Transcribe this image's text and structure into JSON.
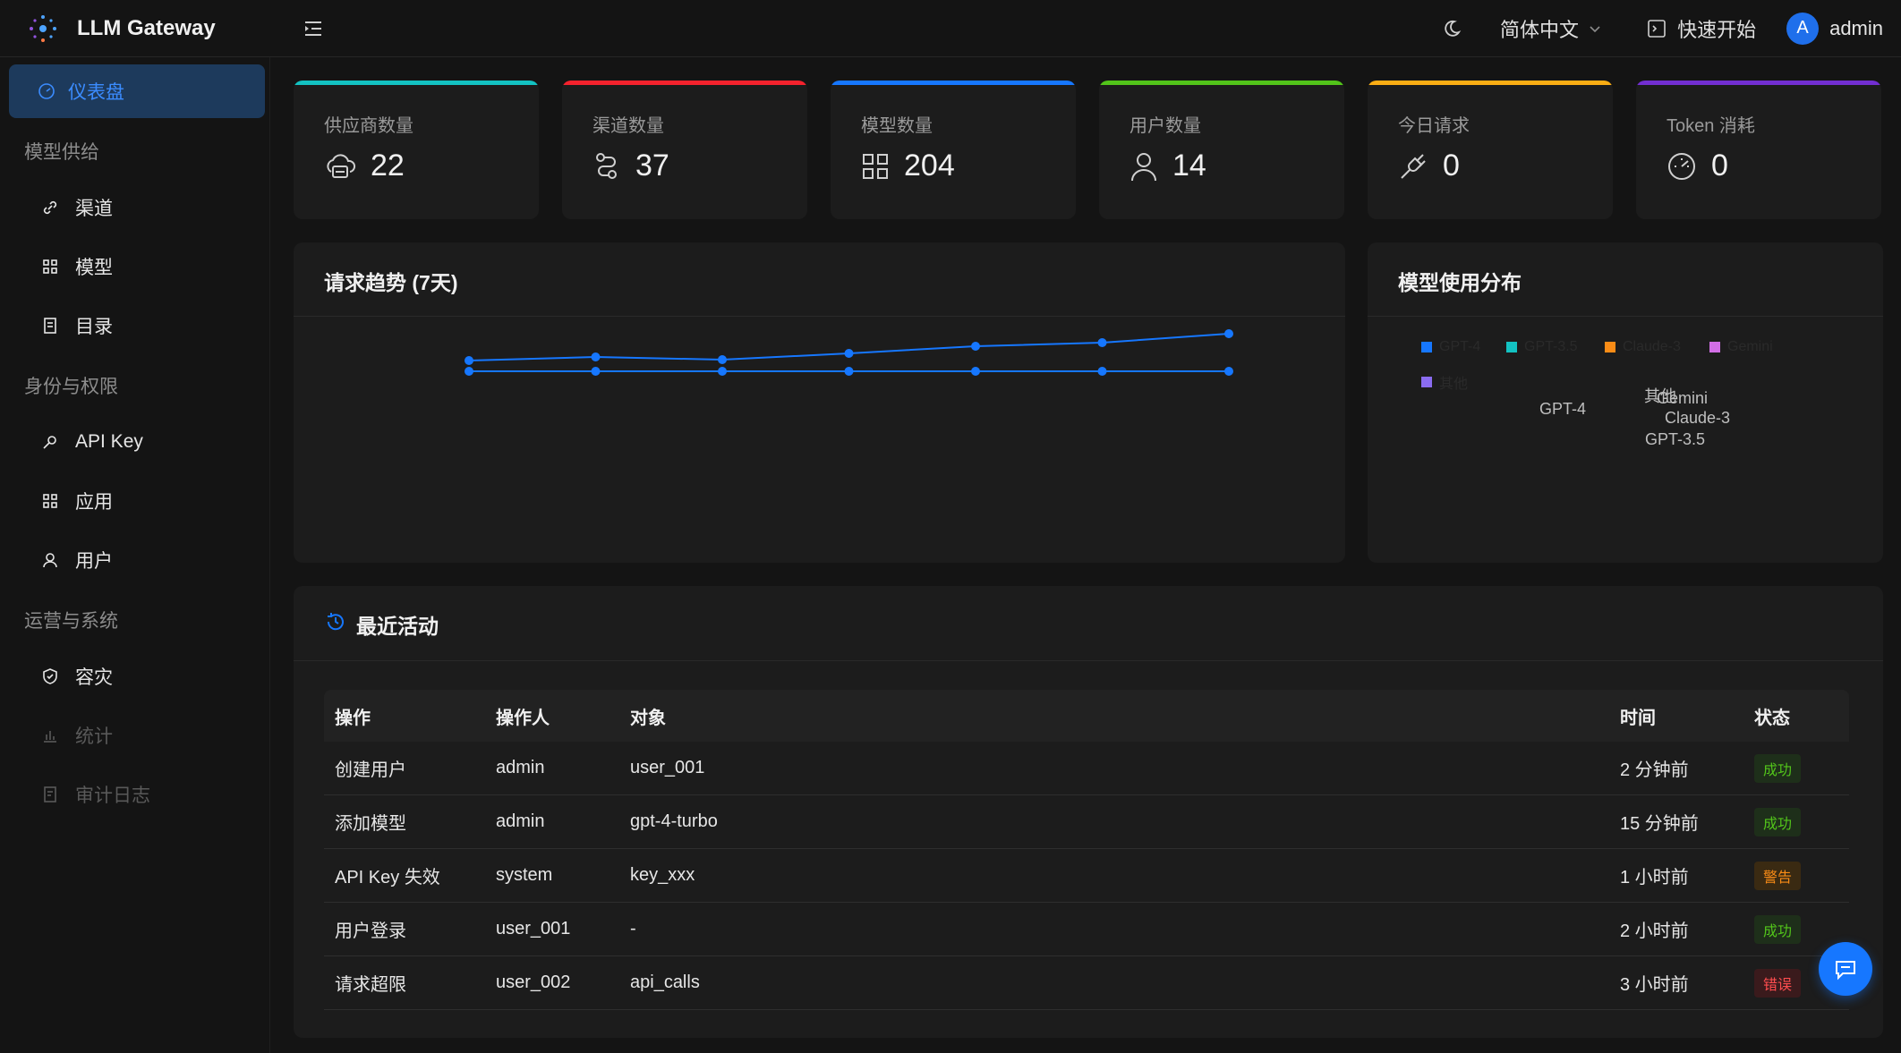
{
  "header": {
    "app_name": "LLM Gateway",
    "language": "简体中文",
    "quick_start": "快速开始",
    "avatar_letter": "A",
    "username": "admin"
  },
  "sidebar": {
    "active": "仪表盘",
    "groups": {
      "supply": "模型供给",
      "identity": "身份与权限",
      "ops": "运营与系统"
    },
    "items": {
      "channels": "渠道",
      "models": "模型",
      "catalog": "目录",
      "apikey": "API Key",
      "apps": "应用",
      "users": "用户",
      "dr": "容灾",
      "stats": "统计",
      "audit": "审计日志"
    }
  },
  "stats": [
    {
      "label": "供应商数量",
      "value": "22",
      "color": "#13c2c2"
    },
    {
      "label": "渠道数量",
      "value": "37",
      "color": "#f5222d"
    },
    {
      "label": "模型数量",
      "value": "204",
      "color": "#1677ff"
    },
    {
      "label": "用户数量",
      "value": "14",
      "color": "#52c41a"
    },
    {
      "label": "今日请求",
      "value": "0",
      "color": "#faad14"
    },
    {
      "label": "Token 消耗",
      "value": "0",
      "color": "#722ed1"
    }
  ],
  "trend": {
    "title": "请求趋势 (7天)"
  },
  "distribution": {
    "title": "模型使用分布",
    "legend": [
      {
        "name": "GPT-4",
        "color": "#1677ff"
      },
      {
        "name": "GPT-3.5",
        "color": "#13c2c2"
      },
      {
        "name": "Claude-3",
        "color": "#fa8c16"
      },
      {
        "name": "Gemini",
        "color": "#d26ee6"
      },
      {
        "name": "其他",
        "color": "#8a6cf0"
      }
    ],
    "slice_labels": [
      "GPT-4",
      "其他",
      "Gemini",
      "Claude-3",
      "GPT-3.5"
    ]
  },
  "activity": {
    "title": "最近活动",
    "columns": [
      "操作",
      "操作人",
      "对象",
      "时间",
      "状态"
    ],
    "rows": [
      {
        "action": "创建用户",
        "operator": "admin",
        "target": "user_001",
        "time": "2 分钟前",
        "status": "成功",
        "level": "success"
      },
      {
        "action": "添加模型",
        "operator": "admin",
        "target": "gpt-4-turbo",
        "time": "15 分钟前",
        "status": "成功",
        "level": "success"
      },
      {
        "action": "API Key 失效",
        "operator": "system",
        "target": "key_xxx",
        "time": "1 小时前",
        "status": "警告",
        "level": "warning"
      },
      {
        "action": "用户登录",
        "operator": "user_001",
        "target": "-",
        "time": "2 小时前",
        "status": "成功",
        "level": "success"
      },
      {
        "action": "请求超限",
        "operator": "user_002",
        "target": "api_calls",
        "time": "3 小时前",
        "status": "错误",
        "level": "error"
      }
    ]
  },
  "colors": {
    "accent": "#1677ff",
    "line": "#1677ff"
  }
}
